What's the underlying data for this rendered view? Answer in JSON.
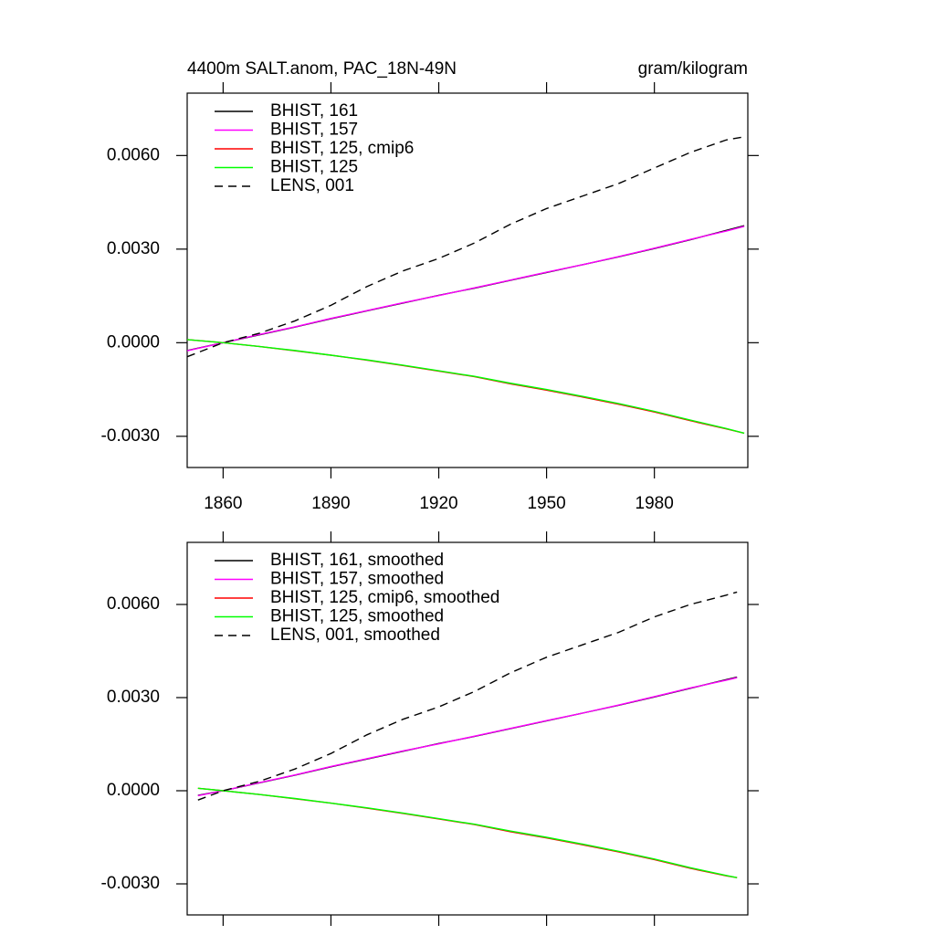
{
  "chart_data": [
    {
      "type": "line",
      "title": "4400m SALT.anom, PAC_18N-49N",
      "units": "gram/kilogram",
      "x": [
        1850,
        1860,
        1870,
        1880,
        1890,
        1900,
        1910,
        1920,
        1930,
        1940,
        1950,
        1960,
        1970,
        1980,
        1990,
        2000,
        2005
      ],
      "xlim": [
        1850,
        2006
      ],
      "xticks": [
        1860,
        1890,
        1920,
        1950,
        1980
      ],
      "ylim": [
        -0.004,
        0.008
      ],
      "yticks": [
        {
          "value": -0.003,
          "label": "-0.0030"
        },
        {
          "value": 0,
          "label": "0.0000"
        },
        {
          "value": 0.003,
          "label": "0.0030"
        },
        {
          "value": 0.006,
          "label": "0.0060"
        }
      ],
      "series": [
        {
          "name": "BHIST, 161",
          "color": "#000000",
          "dashed": false,
          "values": [
            -0.00025,
            0.0,
            0.00025,
            0.0005,
            0.00077,
            0.00102,
            0.00127,
            0.00152,
            0.00175,
            0.002,
            0.00225,
            0.0025,
            0.00275,
            0.00302,
            0.0033,
            0.0036,
            0.00375
          ]
        },
        {
          "name": "BHIST, 157",
          "color": "#ff00ff",
          "dashed": false,
          "values": [
            -0.00026,
            0.0,
            0.00026,
            0.00051,
            0.00078,
            0.00103,
            0.00128,
            0.00151,
            0.00176,
            0.00201,
            0.00226,
            0.0025,
            0.00276,
            0.00303,
            0.00331,
            0.00358,
            0.00373
          ]
        },
        {
          "name": "BHIST, 125, cmip6",
          "color": "#ff0000",
          "dashed": false,
          "values": [
            0.0001,
            0.0,
            -0.00012,
            -0.00026,
            -0.0004,
            -0.00056,
            -0.00073,
            -0.00091,
            -0.00109,
            -0.00132,
            -0.00152,
            -0.00174,
            -0.00197,
            -0.00222,
            -0.0025,
            -0.00276,
            -0.0029
          ]
        },
        {
          "name": "BHIST, 125",
          "color": "#00ff00",
          "dashed": false,
          "values": [
            0.0001,
            0.0,
            -0.00012,
            -0.00025,
            -0.0004,
            -0.00055,
            -0.00072,
            -0.0009,
            -0.00108,
            -0.0013,
            -0.0015,
            -0.00172,
            -0.00195,
            -0.0022,
            -0.00248,
            -0.00275,
            -0.0029
          ]
        },
        {
          "name": "LENS, 001",
          "color": "#000000",
          "dashed": true,
          "values": [
            -0.00045,
            0.0,
            0.0003,
            0.0007,
            0.0012,
            0.0018,
            0.0023,
            0.0027,
            0.0032,
            0.0038,
            0.0043,
            0.0047,
            0.0051,
            0.0056,
            0.0061,
            0.0065,
            0.0066
          ]
        }
      ]
    },
    {
      "type": "line",
      "x": [
        1853,
        1860,
        1870,
        1880,
        1890,
        1900,
        1910,
        1920,
        1930,
        1940,
        1950,
        1960,
        1970,
        1980,
        1990,
        2000,
        2003
      ],
      "xlim": [
        1850,
        2006
      ],
      "xticks": [
        1860,
        1890,
        1920,
        1950,
        1980
      ],
      "ylim": [
        -0.004,
        0.008
      ],
      "yticks": [
        {
          "value": -0.003,
          "label": "-0.0030"
        },
        {
          "value": 0,
          "label": "0.0000"
        },
        {
          "value": 0.003,
          "label": "0.0030"
        },
        {
          "value": 0.006,
          "label": "0.0060"
        }
      ],
      "series": [
        {
          "name": "BHIST, 161, smoothed",
          "color": "#000000",
          "dashed": false,
          "values": [
            -0.00015,
            0.0,
            0.00025,
            0.0005,
            0.00077,
            0.00102,
            0.00127,
            0.00152,
            0.00175,
            0.002,
            0.00225,
            0.0025,
            0.00275,
            0.00302,
            0.0033,
            0.00358,
            0.00366
          ]
        },
        {
          "name": "BHIST, 157, smoothed",
          "color": "#ff00ff",
          "dashed": false,
          "values": [
            -0.00016,
            0.0,
            0.00026,
            0.00051,
            0.00078,
            0.00103,
            0.00128,
            0.00151,
            0.00176,
            0.00201,
            0.00226,
            0.0025,
            0.00276,
            0.00303,
            0.00331,
            0.00356,
            0.00364
          ]
        },
        {
          "name": "BHIST, 125, cmip6, smoothed",
          "color": "#ff0000",
          "dashed": false,
          "values": [
            8e-05,
            0.0,
            -0.00012,
            -0.00026,
            -0.0004,
            -0.00056,
            -0.00073,
            -0.00091,
            -0.00109,
            -0.00132,
            -0.00152,
            -0.00174,
            -0.00197,
            -0.00222,
            -0.0025,
            -0.00274,
            -0.0028
          ]
        },
        {
          "name": "BHIST, 125, smoothed",
          "color": "#00ff00",
          "dashed": false,
          "values": [
            8e-05,
            0.0,
            -0.00012,
            -0.00025,
            -0.0004,
            -0.00055,
            -0.00072,
            -0.0009,
            -0.00108,
            -0.0013,
            -0.0015,
            -0.00172,
            -0.00195,
            -0.0022,
            -0.00248,
            -0.00273,
            -0.0028
          ]
        },
        {
          "name": "LENS, 001, smoothed",
          "color": "#000000",
          "dashed": true,
          "values": [
            -0.0003,
            0.0,
            0.0003,
            0.0007,
            0.0012,
            0.0018,
            0.0023,
            0.0027,
            0.0032,
            0.0038,
            0.0043,
            0.0047,
            0.0051,
            0.0056,
            0.006,
            0.0063,
            0.0064
          ]
        }
      ]
    }
  ]
}
